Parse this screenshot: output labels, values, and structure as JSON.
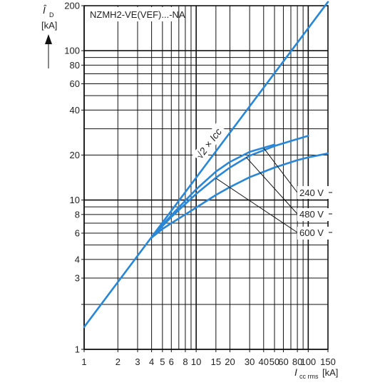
{
  "chart_data": {
    "type": "line",
    "title": "NZMH2-VE(VEF)...-NA",
    "ylabel": {
      "symbol": "Î",
      "sub": "D",
      "unit": "[kA]"
    },
    "xlabel": {
      "symbol": "I",
      "sub": "cc rms",
      "unit": "[kA]"
    },
    "x_scale": "log",
    "y_scale": "log",
    "xlim": [
      1,
      150
    ],
    "ylim": [
      1,
      200
    ],
    "x_ticks": [
      1,
      2,
      3,
      4,
      5,
      6,
      8,
      10,
      15,
      20,
      30,
      40,
      50,
      60,
      80,
      100,
      150
    ],
    "x_tick_labels": [
      "1",
      "2",
      "3",
      "4",
      "5",
      "6",
      "8",
      "10",
      "15",
      "20",
      "30",
      "40",
      "50",
      "60",
      "80",
      "100",
      "150"
    ],
    "y_ticks": [
      1,
      2,
      3,
      4,
      6,
      8,
      10,
      20,
      40,
      60,
      80,
      100,
      200
    ],
    "y_tick_labels": [
      "1",
      "",
      "3",
      "4",
      "6",
      "8",
      "10",
      "20",
      "40",
      "60",
      "80",
      "100",
      "200"
    ],
    "grid": true,
    "series": [
      {
        "name": "√2 × Icc",
        "x": [
          1,
          150
        ],
        "y": [
          1.41,
          212
        ]
      },
      {
        "name": "240 V",
        "x": [
          4,
          5,
          6,
          8,
          10,
          15,
          20,
          30,
          50
        ],
        "y": [
          5.6,
          6.8,
          7.9,
          9.9,
          11.8,
          15.5,
          18,
          21,
          23.5
        ]
      },
      {
        "name": "",
        "x": [
          4,
          5,
          6,
          8,
          10,
          15,
          20,
          30,
          50,
          80,
          100
        ],
        "y": [
          5.6,
          6.7,
          7.7,
          9.4,
          11,
          14.1,
          16.5,
          19.8,
          23,
          25.6,
          26.9
        ]
      },
      {
        "name": "",
        "x": [
          4,
          5,
          6,
          8,
          10,
          15,
          20,
          30,
          50,
          80,
          100,
          150
        ],
        "y": [
          5.6,
          6.4,
          7,
          8,
          8.9,
          10.8,
          12.2,
          14.2,
          16.5,
          18.5,
          19.3,
          20.5
        ]
      }
    ],
    "annotations": [
      "√2 × Icc",
      "240 V",
      "480 V",
      "600 V"
    ],
    "colors": {
      "curve": "#2a86d6",
      "grid": "#111111",
      "text": "#222222"
    }
  }
}
